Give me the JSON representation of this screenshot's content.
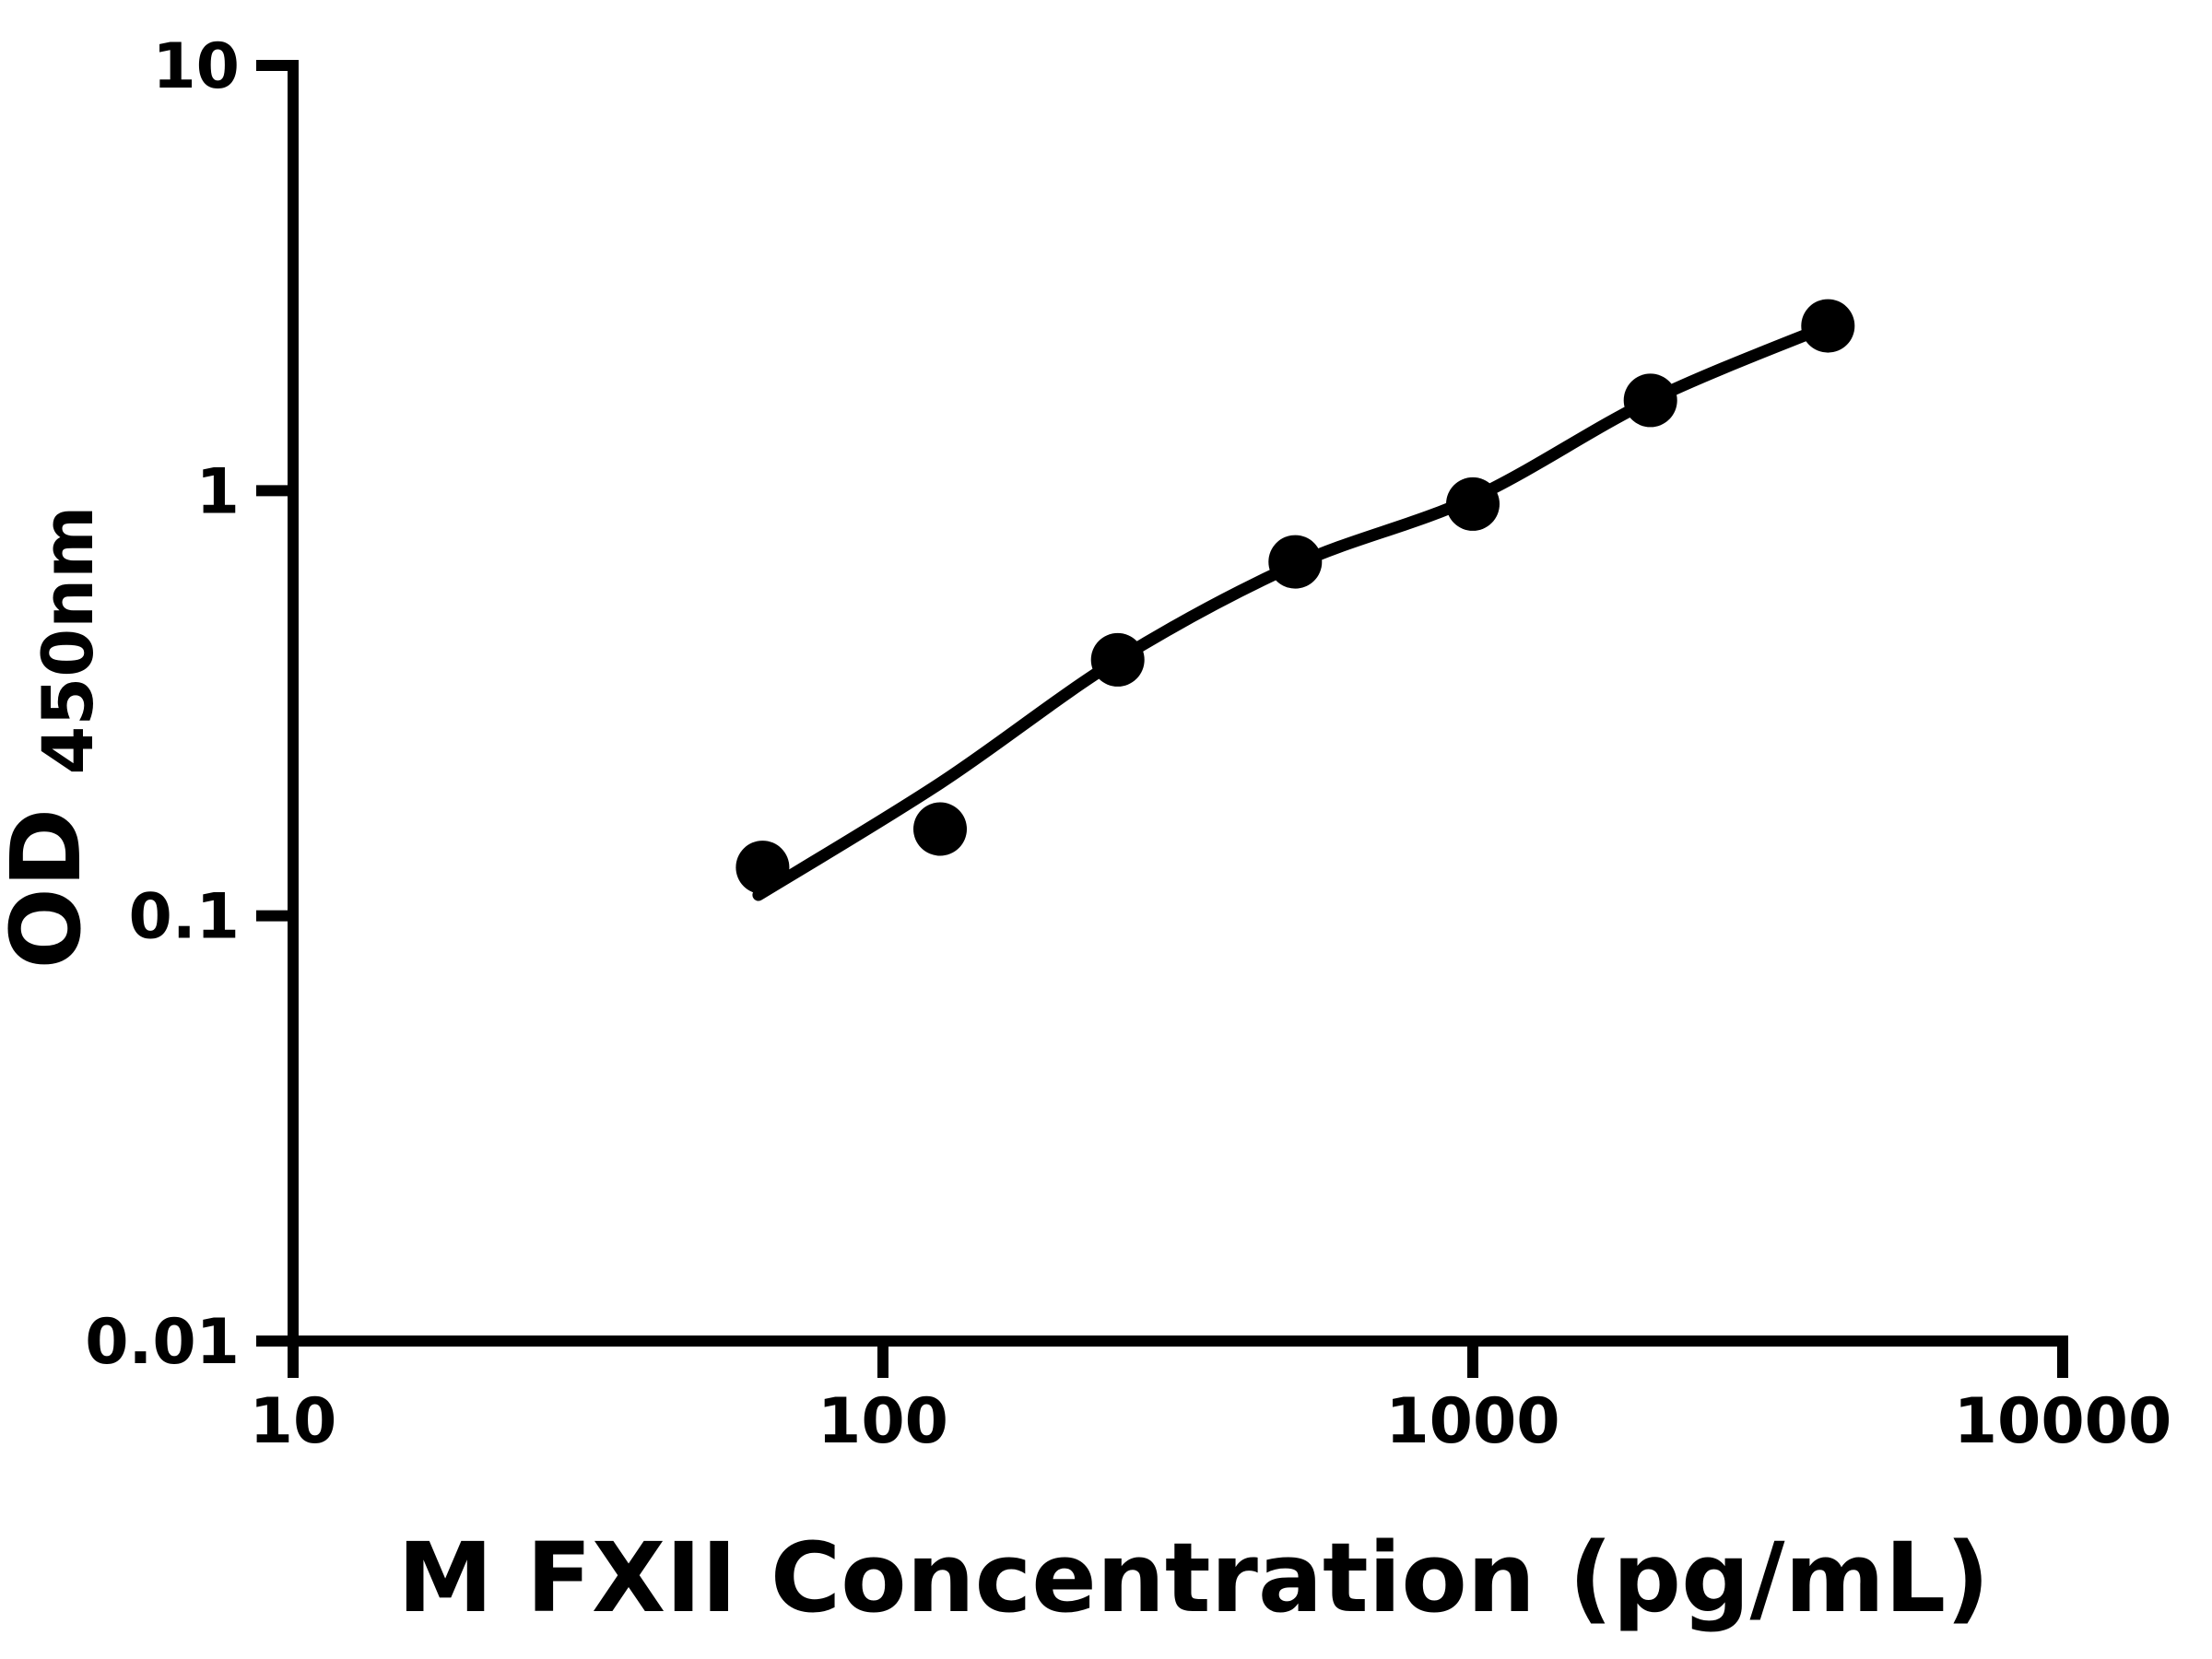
{
  "chart_data": {
    "type": "scatter",
    "title": "",
    "xlabel": "M FXII Concentration (pg/mL)",
    "ylabel": "OD450nm",
    "ylabel_main": "OD",
    "ylabel_sub": "450nm",
    "x_scale": "log",
    "y_scale": "log",
    "xlim": [
      10,
      10000
    ],
    "ylim": [
      0.01,
      10
    ],
    "grid": "off",
    "legend": "none",
    "x_ticks": [
      {
        "value": 10,
        "label": "10"
      },
      {
        "value": 100,
        "label": "100"
      },
      {
        "value": 1000,
        "label": "1000"
      },
      {
        "value": 10000,
        "label": "10000"
      }
    ],
    "y_ticks": [
      {
        "value": 10,
        "label": "10"
      },
      {
        "value": 1,
        "label": "1"
      },
      {
        "value": 0.1,
        "label": "0.1"
      },
      {
        "value": 0.01,
        "label": "0.01"
      }
    ],
    "series": [
      {
        "name": "standard-curve-points",
        "type": "scatter",
        "marker": "filled-circle",
        "points": [
          {
            "x": 62.5,
            "y": 0.13
          },
          {
            "x": 125,
            "y": 0.16
          },
          {
            "x": 250,
            "y": 0.4
          },
          {
            "x": 500,
            "y": 0.68
          },
          {
            "x": 1000,
            "y": 0.93
          },
          {
            "x": 2000,
            "y": 1.63
          },
          {
            "x": 4000,
            "y": 2.44
          }
        ]
      }
    ],
    "fit_curve": [
      {
        "x": 61.5,
        "y": 0.112
      },
      {
        "x": 125,
        "y": 0.205
      },
      {
        "x": 250,
        "y": 0.4
      },
      {
        "x": 500,
        "y": 0.67
      },
      {
        "x": 1000,
        "y": 0.96
      },
      {
        "x": 2000,
        "y": 1.63
      },
      {
        "x": 4000,
        "y": 2.44
      }
    ],
    "colors": {
      "marker": "#000000",
      "line": "#000000",
      "axis": "#000000",
      "background": "#ffffff"
    }
  }
}
